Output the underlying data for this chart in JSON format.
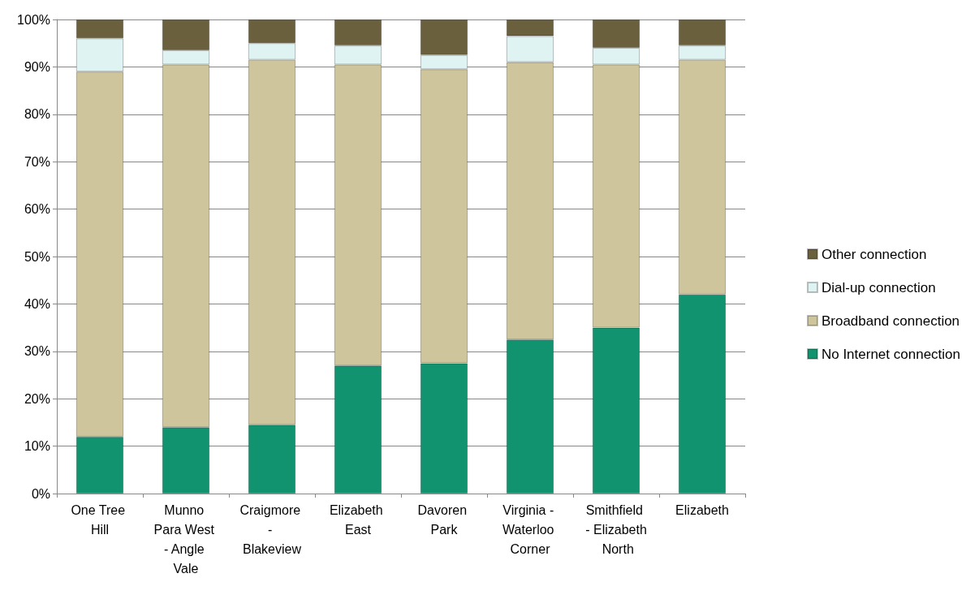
{
  "chart_data": {
    "type": "bar",
    "stacked": true,
    "categories": [
      "One Tree Hill",
      "Munno Para West - Angle Vale",
      "Craigmore - Blakeview",
      "Elizabeth East",
      "Davoren Park",
      "Virginia - Waterloo Corner",
      "Smithfield - Elizabeth North",
      "Elizabeth"
    ],
    "series": [
      {
        "name": "No Internet connection",
        "color": "#11936f",
        "values": [
          12,
          14,
          14.5,
          27,
          27.5,
          32.5,
          35,
          42
        ]
      },
      {
        "name": "Broadband connection",
        "color": "#cfc59c",
        "values": [
          77,
          76.5,
          77,
          63.5,
          62,
          58.5,
          55.5,
          49.5
        ]
      },
      {
        "name": "Dial-up connection",
        "color": "#dff3f3",
        "values": [
          7,
          3,
          3.5,
          4,
          3,
          5.5,
          3.5,
          3
        ]
      },
      {
        "name": "Other connection",
        "color": "#6b603d",
        "values": [
          4,
          6.5,
          5,
          5.5,
          7.5,
          3.5,
          6,
          5.5
        ]
      }
    ],
    "ylim": [
      0,
      100
    ],
    "yticks": [
      {
        "value": 0,
        "label": "0%"
      },
      {
        "value": 10,
        "label": "10%"
      },
      {
        "value": 20,
        "label": "20%"
      },
      {
        "value": 30,
        "label": "30%"
      },
      {
        "value": 40,
        "label": "40%"
      },
      {
        "value": 50,
        "label": "50%"
      },
      {
        "value": 60,
        "label": "60%"
      },
      {
        "value": 70,
        "label": "70%"
      },
      {
        "value": 80,
        "label": "80%"
      },
      {
        "value": 90,
        "label": "90%"
      },
      {
        "value": 100,
        "label": "100%"
      }
    ],
    "grid": "y",
    "legend": "right"
  }
}
